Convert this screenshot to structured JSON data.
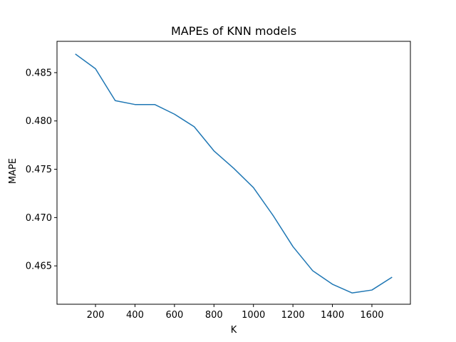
{
  "chart_data": {
    "type": "line",
    "title": "MAPEs of KNN models",
    "xlabel": "K",
    "ylabel": "MAPE",
    "x": [
      100,
      200,
      300,
      400,
      500,
      600,
      700,
      800,
      900,
      1000,
      1100,
      1200,
      1300,
      1400,
      1500,
      1600,
      1700
    ],
    "series": [
      {
        "values": [
          0.4869,
          0.4854,
          0.4821,
          0.4817,
          0.4817,
          0.4807,
          0.4794,
          0.4769,
          0.4751,
          0.4731,
          0.4702,
          0.467,
          0.4645,
          0.4631,
          0.4622,
          0.4625,
          0.4638
        ],
        "color": "#1f77b4"
      }
    ],
    "xlim": [
      5,
      1795
    ],
    "ylim": [
      0.46103,
      0.48824
    ],
    "xticks": [
      200,
      400,
      600,
      800,
      1000,
      1200,
      1400,
      1600
    ],
    "xtick_labels": [
      "200",
      "400",
      "600",
      "800",
      "1000",
      "1200",
      "1400",
      "1600"
    ],
    "yticks": [
      0.465,
      0.47,
      0.475,
      0.48,
      0.485
    ],
    "ytick_labels": [
      "0.465",
      "0.470",
      "0.475",
      "0.480",
      "0.485"
    ],
    "grid": false,
    "legend": "none"
  }
}
